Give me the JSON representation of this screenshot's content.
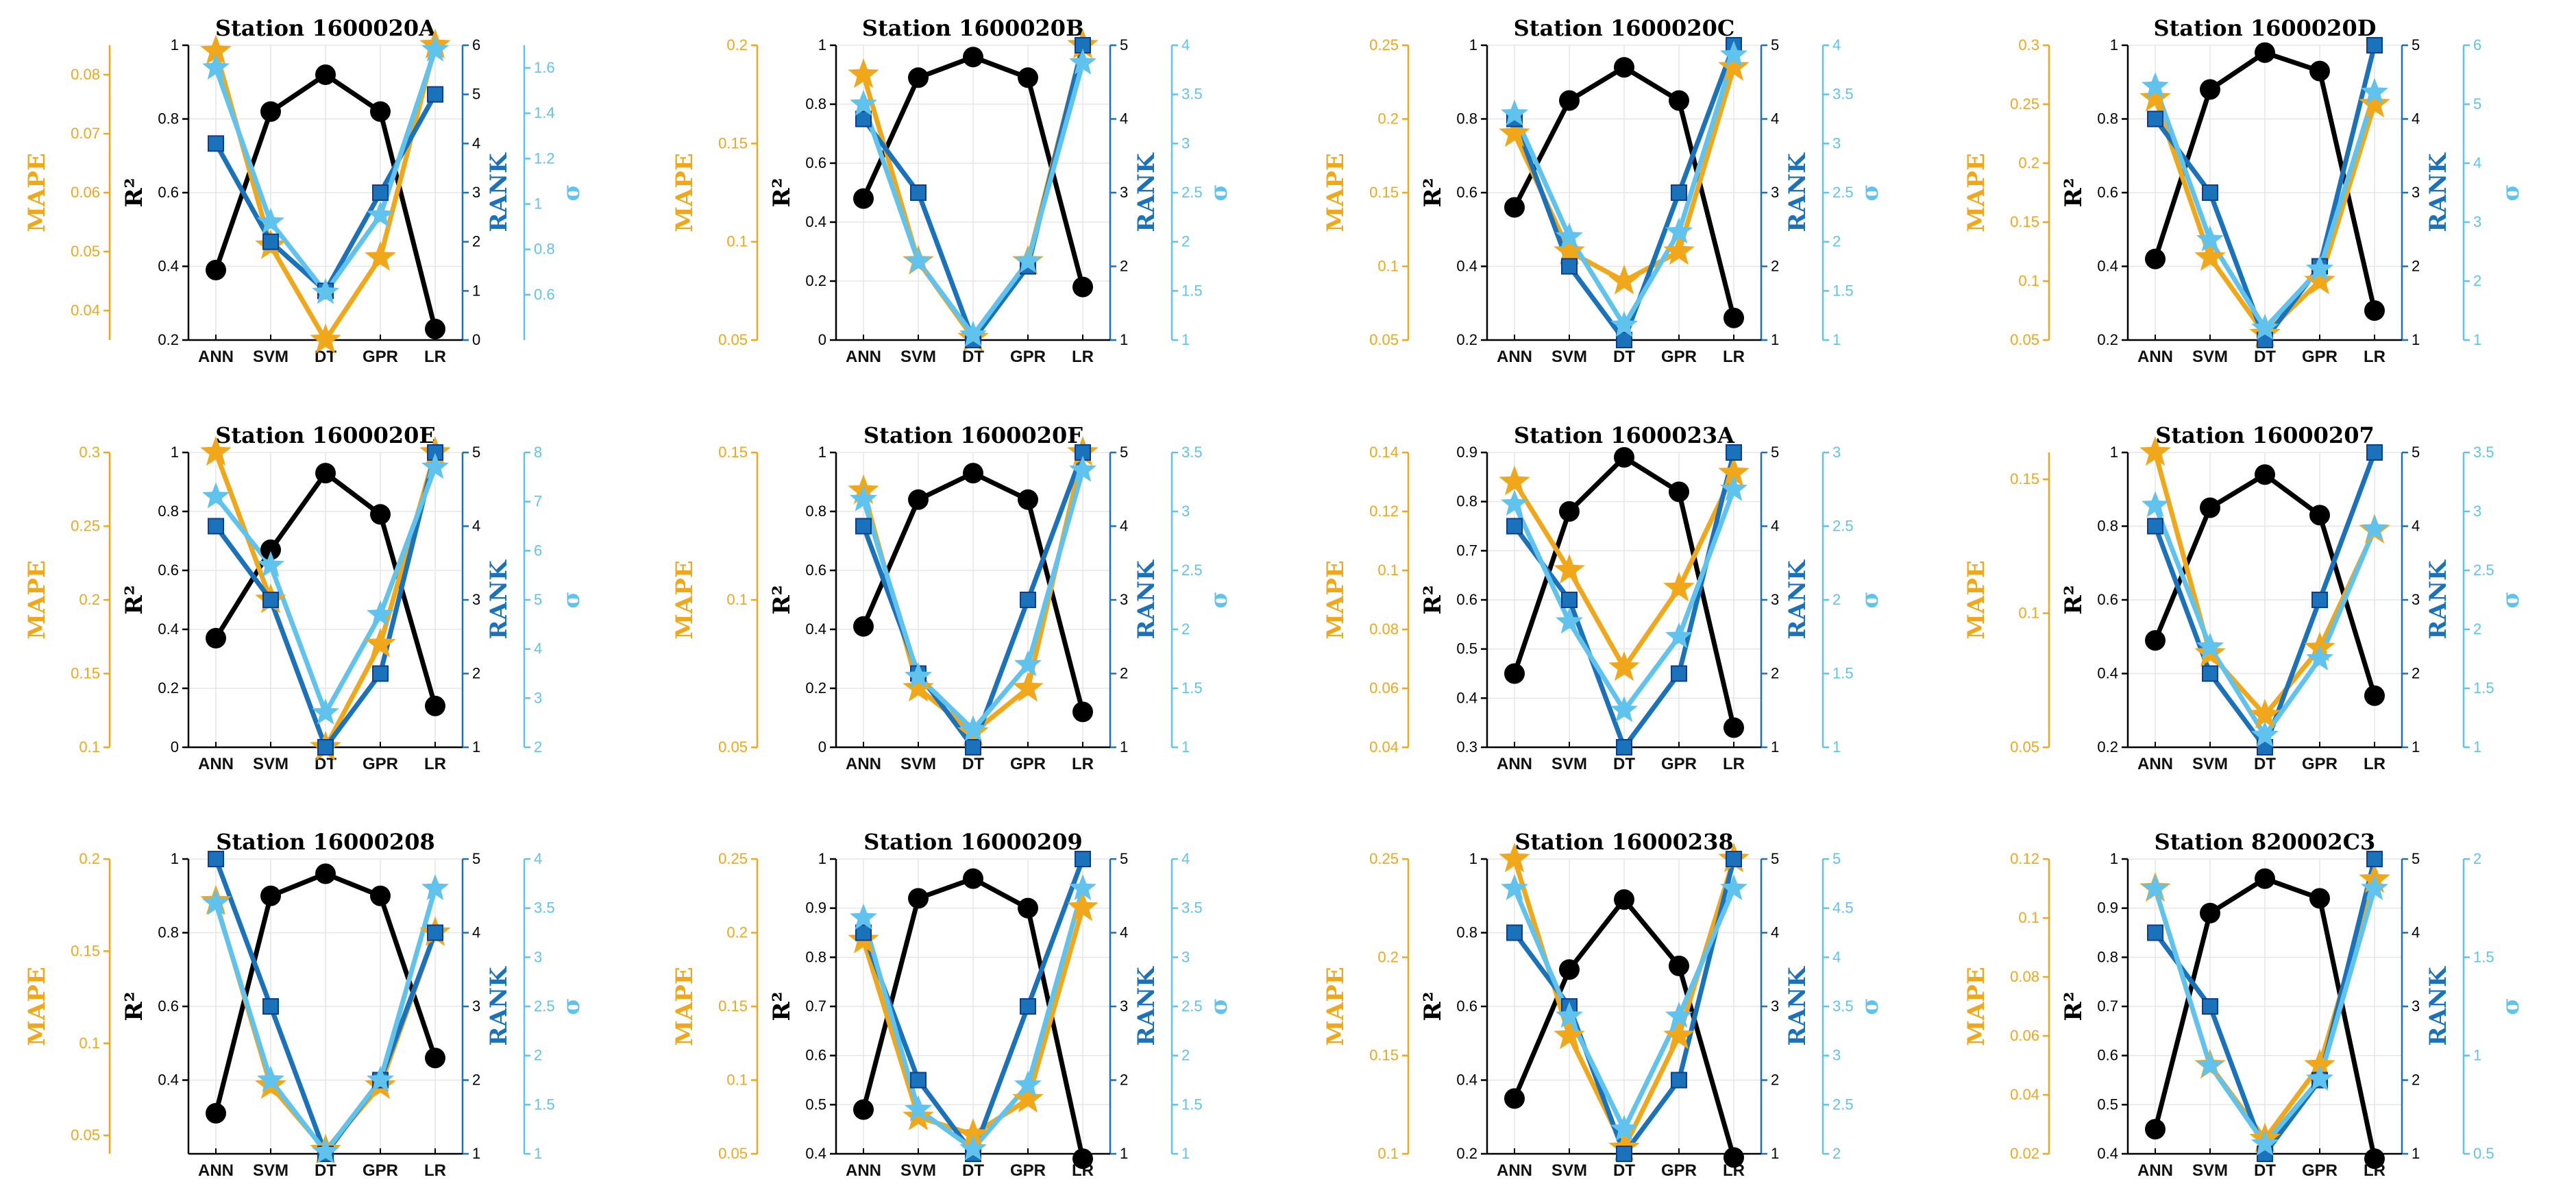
{
  "figure": {
    "colors": {
      "r2": "#000000",
      "mape": "#f0a81a",
      "rank": "#1a72bb",
      "sigma": "#5fc3ee",
      "grid": "#e6e6e6"
    },
    "labels": {
      "mape": "MAPE",
      "r2": "R²",
      "rank": "RANK",
      "sigma": "σ"
    }
  },
  "chart_data": [
    {
      "type": "line",
      "title": "Station 1600020A",
      "categories": [
        "ANN",
        "SVM",
        "DT",
        "GPR",
        "LR"
      ],
      "r2": {
        "ylim": [
          0.2,
          1
        ],
        "ticks": [
          "0.2",
          "0.4",
          "0.6",
          "0.8",
          "1"
        ],
        "values": [
          0.39,
          0.82,
          0.92,
          0.82,
          0.23
        ]
      },
      "mape": {
        "ylim": [
          0.035,
          0.085
        ],
        "ticks": [
          "0.04",
          "0.05",
          "0.06",
          "0.07",
          "0.08"
        ],
        "values": [
          0.084,
          0.051,
          0.035,
          0.049,
          0.085
        ]
      },
      "rank": {
        "ylim": [
          0,
          6
        ],
        "ticks": [
          "0",
          "1",
          "2",
          "3",
          "4",
          "5",
          "6"
        ],
        "values": [
          4,
          2,
          1,
          3,
          5
        ]
      },
      "sigma": {
        "ylim": [
          0.4,
          1.7
        ],
        "ticks": [
          "0.6",
          "0.8",
          "1",
          "1.2",
          "1.4",
          "1.6"
        ],
        "values": [
          1.6,
          0.92,
          0.61,
          0.95,
          1.68
        ]
      }
    },
    {
      "type": "line",
      "title": "Station 1600020B",
      "categories": [
        "ANN",
        "SVM",
        "DT",
        "GPR",
        "LR"
      ],
      "r2": {
        "ylim": [
          0,
          1
        ],
        "ticks": [
          "0",
          "0.2",
          "0.4",
          "0.6",
          "0.8",
          "1"
        ],
        "values": [
          0.48,
          0.89,
          0.96,
          0.89,
          0.18
        ]
      },
      "mape": {
        "ylim": [
          0.05,
          0.2
        ],
        "ticks": [
          "0.05",
          "0.1",
          "0.15",
          "0.2"
        ],
        "values": [
          0.185,
          0.09,
          0.051,
          0.09,
          0.2
        ]
      },
      "rank": {
        "ylim": [
          1,
          5
        ],
        "ticks": [
          "1",
          "2",
          "3",
          "4",
          "5"
        ],
        "values": [
          4,
          3,
          1,
          2,
          5
        ]
      },
      "sigma": {
        "ylim": [
          1,
          4
        ],
        "ticks": [
          "1",
          "1.5",
          "2",
          "2.5",
          "3",
          "3.5",
          "4"
        ],
        "values": [
          3.4,
          1.8,
          1.05,
          1.8,
          3.82
        ]
      }
    },
    {
      "type": "line",
      "title": "Station 1600020C",
      "categories": [
        "ANN",
        "SVM",
        "DT",
        "GPR",
        "LR"
      ],
      "r2": {
        "ylim": [
          0.2,
          1
        ],
        "ticks": [
          "0.2",
          "0.4",
          "0.6",
          "0.8",
          "1"
        ],
        "values": [
          0.56,
          0.85,
          0.94,
          0.85,
          0.26
        ]
      },
      "mape": {
        "ylim": [
          0.05,
          0.25
        ],
        "ticks": [
          "0.05",
          "0.1",
          "0.15",
          "0.2",
          "0.25"
        ],
        "values": [
          0.19,
          0.11,
          0.09,
          0.11,
          0.235
        ]
      },
      "rank": {
        "ylim": [
          1,
          5
        ],
        "ticks": [
          "1",
          "2",
          "3",
          "4",
          "5"
        ],
        "values": [
          4,
          2,
          1,
          3,
          5
        ]
      },
      "sigma": {
        "ylim": [
          1,
          4
        ],
        "ticks": [
          "1",
          "1.5",
          "2",
          "2.5",
          "3",
          "3.5",
          "4"
        ],
        "values": [
          3.3,
          2.05,
          1.15,
          2.1,
          3.9
        ]
      }
    },
    {
      "type": "line",
      "title": "Station 1600020D",
      "categories": [
        "ANN",
        "SVM",
        "DT",
        "GPR",
        "LR"
      ],
      "r2": {
        "ylim": [
          0.2,
          1
        ],
        "ticks": [
          "0.2",
          "0.4",
          "0.6",
          "0.8",
          "1"
        ],
        "values": [
          0.42,
          0.88,
          0.98,
          0.93,
          0.28
        ]
      },
      "mape": {
        "ylim": [
          0.05,
          0.3
        ],
        "ticks": [
          "0.05",
          "0.1",
          "0.15",
          "0.2",
          "0.25",
          "0.3"
        ],
        "values": [
          0.255,
          0.12,
          0.055,
          0.1,
          0.25
        ]
      },
      "rank": {
        "ylim": [
          1,
          5
        ],
        "ticks": [
          "1",
          "2",
          "3",
          "4",
          "5"
        ],
        "values": [
          4,
          3,
          1,
          2,
          5
        ]
      },
      "sigma": {
        "ylim": [
          1,
          6
        ],
        "ticks": [
          "1",
          "2",
          "3",
          "4",
          "5",
          "6"
        ],
        "values": [
          5.3,
          2.7,
          1.2,
          2.2,
          5.2
        ]
      }
    },
    {
      "type": "line",
      "title": "Station 1600020E",
      "categories": [
        "ANN",
        "SVM",
        "DT",
        "GPR",
        "LR"
      ],
      "r2": {
        "ylim": [
          0,
          1
        ],
        "ticks": [
          "0",
          "0.2",
          "0.4",
          "0.6",
          "0.8",
          "1"
        ],
        "values": [
          0.37,
          0.67,
          0.93,
          0.79,
          0.14
        ]
      },
      "mape": {
        "ylim": [
          0.1,
          0.3
        ],
        "ticks": [
          "0.1",
          "0.15",
          "0.2",
          "0.25",
          "0.3"
        ],
        "values": [
          0.3,
          0.2,
          0.1,
          0.17,
          0.3
        ]
      },
      "rank": {
        "ylim": [
          1,
          5
        ],
        "ticks": [
          "1",
          "2",
          "3",
          "4",
          "5"
        ],
        "values": [
          4,
          3,
          1,
          2,
          5
        ]
      },
      "sigma": {
        "ylim": [
          2,
          8
        ],
        "ticks": [
          "2",
          "3",
          "4",
          "5",
          "6",
          "7",
          "8"
        ],
        "values": [
          7.1,
          5.7,
          2.7,
          4.7,
          7.7
        ]
      }
    },
    {
      "type": "line",
      "title": "Station 1600020F",
      "categories": [
        "ANN",
        "SVM",
        "DT",
        "GPR",
        "LR"
      ],
      "r2": {
        "ylim": [
          0,
          1
        ],
        "ticks": [
          "0",
          "0.2",
          "0.4",
          "0.6",
          "0.8",
          "1"
        ],
        "values": [
          0.41,
          0.84,
          0.93,
          0.84,
          0.12
        ]
      },
      "mape": {
        "ylim": [
          0.05,
          0.15
        ],
        "ticks": [
          "0.05",
          "0.1",
          "0.15"
        ],
        "values": [
          0.137,
          0.07,
          0.055,
          0.07,
          0.15
        ]
      },
      "rank": {
        "ylim": [
          1,
          5
        ],
        "ticks": [
          "1",
          "2",
          "3",
          "4",
          "5"
        ],
        "values": [
          4,
          2,
          1,
          3,
          5
        ]
      },
      "sigma": {
        "ylim": [
          1,
          3.5
        ],
        "ticks": [
          "1",
          "1.5",
          "2",
          "2.5",
          "3",
          "3.5"
        ],
        "values": [
          3.1,
          1.6,
          1.15,
          1.7,
          3.35
        ]
      }
    },
    {
      "type": "line",
      "title": "Station 1600023A",
      "categories": [
        "ANN",
        "SVM",
        "DT",
        "GPR",
        "LR"
      ],
      "r2": {
        "ylim": [
          0.3,
          0.9
        ],
        "ticks": [
          "0.3",
          "0.4",
          "0.5",
          "0.6",
          "0.7",
          "0.8",
          "0.9"
        ],
        "values": [
          0.45,
          0.78,
          0.89,
          0.82,
          0.34
        ]
      },
      "mape": {
        "ylim": [
          0.04,
          0.14
        ],
        "ticks": [
          "0.04",
          "0.06",
          "0.08",
          "0.1",
          "0.12",
          "0.14"
        ],
        "values": [
          0.13,
          0.1,
          0.067,
          0.094,
          0.133
        ]
      },
      "rank": {
        "ylim": [
          1,
          5
        ],
        "ticks": [
          "1",
          "2",
          "3",
          "4",
          "5"
        ],
        "values": [
          4,
          3,
          1,
          2,
          5
        ]
      },
      "sigma": {
        "ylim": [
          1,
          3
        ],
        "ticks": [
          "1",
          "1.5",
          "2",
          "2.5",
          "3"
        ],
        "values": [
          2.65,
          1.85,
          1.25,
          1.75,
          2.75
        ]
      }
    },
    {
      "type": "line",
      "title": "Station 16000207",
      "categories": [
        "ANN",
        "SVM",
        "DT",
        "GPR",
        "LR"
      ],
      "r2": {
        "ylim": [
          0.2,
          1
        ],
        "ticks": [
          "0.2",
          "0.4",
          "0.6",
          "0.8",
          "1"
        ],
        "values": [
          0.49,
          0.85,
          0.94,
          0.83,
          0.34
        ]
      },
      "mape": {
        "ylim": [
          0.05,
          0.16
        ],
        "ticks": [
          "0.05",
          "0.1",
          "0.15"
        ],
        "values": [
          0.16,
          0.085,
          0.062,
          0.087,
          0.131
        ]
      },
      "rank": {
        "ylim": [
          1,
          5
        ],
        "ticks": [
          "1",
          "2",
          "3",
          "4",
          "5"
        ],
        "values": [
          4,
          2,
          1,
          3,
          5
        ]
      },
      "sigma": {
        "ylim": [
          1,
          3.5
        ],
        "ticks": [
          "1",
          "1.5",
          "2",
          "2.5",
          "3",
          "3.5"
        ],
        "values": [
          3.05,
          1.85,
          1.1,
          1.75,
          2.85
        ]
      }
    },
    {
      "type": "line",
      "title": "Station 16000208",
      "categories": [
        "ANN",
        "SVM",
        "DT",
        "GPR",
        "LR"
      ],
      "r2": {
        "ylim": [
          0.2,
          1
        ],
        "ticks": [
          "0.4",
          "0.6",
          "0.8",
          "1"
        ],
        "values": [
          0.31,
          0.9,
          0.96,
          0.9,
          0.46
        ]
      },
      "mape": {
        "ylim": [
          0.04,
          0.2
        ],
        "ticks": [
          "0.05",
          "0.1",
          "0.15",
          "0.2"
        ],
        "values": [
          0.177,
          0.077,
          0.042,
          0.077,
          0.16
        ]
      },
      "rank": {
        "ylim": [
          1,
          5
        ],
        "ticks": [
          "1",
          "2",
          "3",
          "4",
          "5"
        ],
        "values": [
          5,
          3,
          1,
          2,
          4
        ]
      },
      "sigma": {
        "ylim": [
          1,
          4
        ],
        "ticks": [
          "1",
          "1.5",
          "2",
          "2.5",
          "3",
          "3.5",
          "4"
        ],
        "values": [
          3.55,
          1.75,
          1.02,
          1.75,
          3.7
        ]
      }
    },
    {
      "type": "line",
      "title": "Station 16000209",
      "categories": [
        "ANN",
        "SVM",
        "DT",
        "GPR",
        "LR"
      ],
      "r2": {
        "ylim": [
          0.4,
          1
        ],
        "ticks": [
          "0.4",
          "0.5",
          "0.6",
          "0.7",
          "0.8",
          "0.9",
          "1"
        ],
        "values": [
          0.49,
          0.92,
          0.96,
          0.9,
          0.39
        ]
      },
      "mape": {
        "ylim": [
          0.05,
          0.25
        ],
        "ticks": [
          "0.05",
          "0.1",
          "0.15",
          "0.2",
          "0.25"
        ],
        "values": [
          0.195,
          0.075,
          0.063,
          0.087,
          0.217
        ]
      },
      "rank": {
        "ylim": [
          1,
          5
        ],
        "ticks": [
          "1",
          "2",
          "3",
          "4",
          "5"
        ],
        "values": [
          4,
          2,
          1,
          3,
          5
        ]
      },
      "sigma": {
        "ylim": [
          1,
          4
        ],
        "ticks": [
          "1",
          "1.5",
          "2",
          "2.5",
          "3",
          "3.5",
          "4"
        ],
        "values": [
          3.4,
          1.45,
          1.05,
          1.7,
          3.7
        ]
      }
    },
    {
      "type": "line",
      "title": "Station 16000238",
      "categories": [
        "ANN",
        "SVM",
        "DT",
        "GPR",
        "LR"
      ],
      "r2": {
        "ylim": [
          0.2,
          1
        ],
        "ticks": [
          "0.2",
          "0.4",
          "0.6",
          "0.8",
          "1"
        ],
        "values": [
          0.35,
          0.7,
          0.89,
          0.71,
          0.19
        ]
      },
      "mape": {
        "ylim": [
          0.1,
          0.25
        ],
        "ticks": [
          "0.1",
          "0.15",
          "0.2",
          "0.25"
        ],
        "values": [
          0.25,
          0.16,
          0.103,
          0.16,
          0.25
        ]
      },
      "rank": {
        "ylim": [
          1,
          5
        ],
        "ticks": [
          "1",
          "2",
          "3",
          "4",
          "5"
        ],
        "values": [
          4,
          3,
          1,
          2,
          5
        ]
      },
      "sigma": {
        "ylim": [
          2,
          5
        ],
        "ticks": [
          "2",
          "2.5",
          "3",
          "3.5",
          "4",
          "4.5",
          "5"
        ],
        "values": [
          4.7,
          3.4,
          2.25,
          3.4,
          4.7
        ]
      }
    },
    {
      "type": "line",
      "title": "Station 820002C3",
      "categories": [
        "ANN",
        "SVM",
        "DT",
        "GPR",
        "LR"
      ],
      "r2": {
        "ylim": [
          0.4,
          1
        ],
        "ticks": [
          "0.4",
          "0.5",
          "0.6",
          "0.7",
          "0.8",
          "0.9",
          "1"
        ],
        "values": [
          0.45,
          0.89,
          0.96,
          0.92,
          0.39
        ]
      },
      "mape": {
        "ylim": [
          0.02,
          0.12
        ],
        "ticks": [
          "0.02",
          "0.04",
          "0.06",
          "0.08",
          "0.1",
          "0.12"
        ],
        "values": [
          0.11,
          0.05,
          0.025,
          0.05,
          0.113
        ]
      },
      "rank": {
        "ylim": [
          1,
          5
        ],
        "ticks": [
          "1",
          "2",
          "3",
          "4",
          "5"
        ],
        "values": [
          4,
          3,
          1,
          2,
          5
        ]
      },
      "sigma": {
        "ylim": [
          0.5,
          2
        ],
        "ticks": [
          "0.5",
          "1",
          "1.5",
          "2"
        ],
        "values": [
          1.85,
          0.95,
          0.55,
          0.88,
          1.85
        ]
      }
    }
  ]
}
